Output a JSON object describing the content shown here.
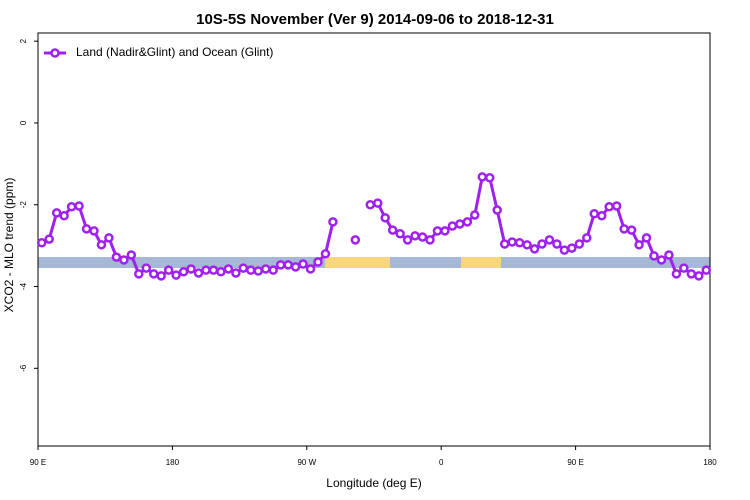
{
  "chart_data": {
    "type": "line",
    "title": "10S-5S November (Ver 9)   2014-09-06 to 2018-12-31",
    "x_label": "Longitude (deg E)",
    "y_label": "XCO2 - MLO trend (ppm)",
    "xlim": [
      90,
      540
    ],
    "xticks": [
      {
        "value": 90,
        "label": "90 E"
      },
      180,
      {
        "value": 270,
        "label": "90 W"
      },
      {
        "value": 360,
        "label": "0"
      },
      {
        "value": 450,
        "label": "90 E"
      },
      {
        "value": 540,
        "label": "180"
      }
    ],
    "ylim": [
      -7.9,
      2.2
    ],
    "yticks": [
      2,
      0,
      -2,
      -4,
      -6
    ],
    "legend": "top-left",
    "x": [
      92.5,
      97.5,
      102.5,
      107.5,
      112.5,
      117.5,
      122.5,
      127.5,
      132.5,
      137.5,
      142.5,
      147.5,
      152.5,
      157.5,
      162.5,
      167.5,
      172.5,
      177.5,
      182.5,
      187.5,
      192.5,
      197.5,
      202.5,
      207.5,
      212.5,
      217.5,
      222.5,
      227.5,
      232.5,
      237.5,
      242.5,
      247.5,
      252.5,
      257.5,
      262.5,
      267.5,
      272.5,
      277.5,
      282.5,
      287.5,
      292.5,
      297.5,
      302.5,
      307.5,
      312.5,
      317.5,
      322.5,
      327.5,
      332.5,
      337.5,
      342.5,
      347.5,
      352.5,
      357.5,
      362.5,
      367.5,
      372.5,
      377.5,
      382.5,
      387.5,
      392.5,
      397.5,
      402.5,
      407.5,
      412.5,
      417.5,
      422.5,
      427.5,
      432.5,
      437.5,
      442.5,
      447.5,
      452.5,
      457.5,
      462.5,
      467.5,
      472.5,
      477.5,
      482.5,
      487.5,
      492.5,
      497.5,
      502.5,
      507.5,
      512.5,
      517.5,
      522.5,
      527.5,
      532.5,
      537.5
    ],
    "series": [
      {
        "name": "Land (Nadir&Glint) and Ocean (Glint)",
        "color": "#a020f0",
        "values": [
          -2.93,
          -2.84,
          -2.2,
          -2.27,
          -2.05,
          -2.03,
          -2.59,
          -2.64,
          -2.98,
          -2.81,
          -3.28,
          -3.35,
          -3.23,
          -3.69,
          -3.55,
          -3.69,
          -3.74,
          -3.6,
          -3.72,
          -3.64,
          -3.57,
          -3.67,
          -3.6,
          -3.6,
          -3.64,
          -3.57,
          -3.67,
          -3.55,
          -3.6,
          -3.62,
          -3.57,
          -3.6,
          -3.47,
          -3.47,
          -3.52,
          -3.45,
          -3.57,
          -3.4,
          -3.2,
          -2.42,
          null,
          null,
          -2.86,
          null,
          -2.0,
          -1.96,
          -2.32,
          -2.62,
          -2.71,
          -2.86,
          -2.76,
          -2.79,
          -2.86,
          -2.64,
          -2.64,
          -2.52,
          -2.47,
          -2.42,
          -2.25,
          -1.32,
          -1.34,
          -2.13,
          -2.96,
          -2.91,
          -2.93,
          -2.98,
          -3.08,
          -2.96,
          -2.86,
          -2.96,
          -3.11,
          -3.06,
          -2.96,
          -2.81,
          -2.22,
          -2.27,
          -2.05,
          -2.03,
          -2.59,
          -2.62,
          -2.98,
          -2.81,
          -3.25,
          -3.35,
          -3.23,
          -3.69,
          -3.55,
          -3.69,
          -3.74,
          -3.6
        ]
      }
    ]
  }
}
